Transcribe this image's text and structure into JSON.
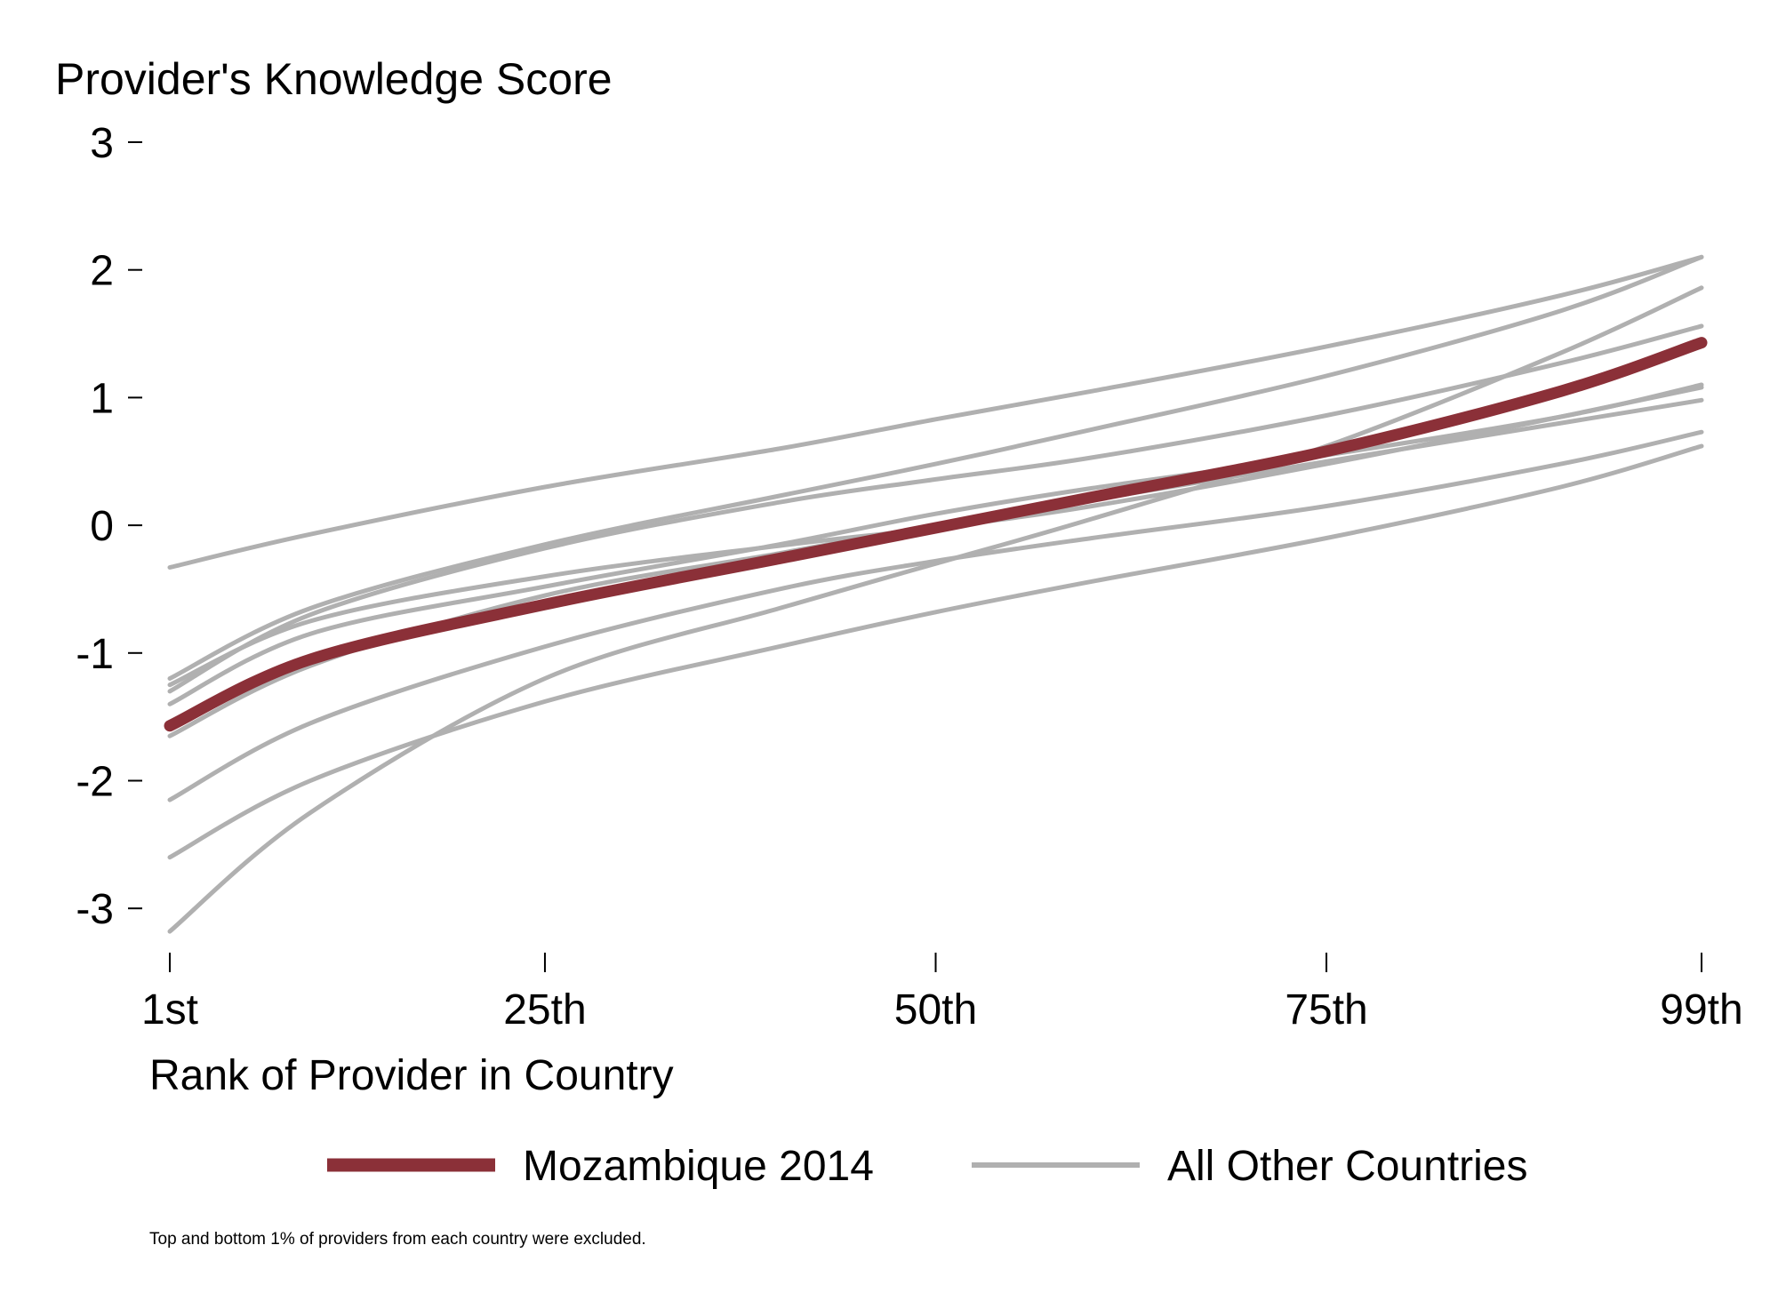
{
  "chart_data": {
    "type": "line",
    "ylabel": "Provider's Knowledge Score",
    "xlabel": "Rank of Provider in Country",
    "note": "Top and bottom 1% of providers from each country were excluded.",
    "xlim": [
      1,
      99
    ],
    "ylim": [
      -3.3,
      3.1
    ],
    "x_ticks": [
      {
        "value": 1,
        "label": "1st"
      },
      {
        "value": 25,
        "label": "25th"
      },
      {
        "value": 50,
        "label": "50th"
      },
      {
        "value": 75,
        "label": "75th"
      },
      {
        "value": 99,
        "label": "99th"
      }
    ],
    "y_ticks": [
      {
        "value": 3,
        "label": "3"
      },
      {
        "value": 2,
        "label": "2"
      },
      {
        "value": 1,
        "label": "1"
      },
      {
        "value": 0,
        "label": "0"
      },
      {
        "value": -1,
        "label": "-1"
      },
      {
        "value": -2,
        "label": "-2"
      },
      {
        "value": -3,
        "label": "-3"
      }
    ],
    "legend": {
      "placement": "bottom",
      "entries": [
        {
          "label": "Mozambique 2014",
          "color": "#8B3038"
        },
        {
          "label": "All Other Countries",
          "color": "#B0B0B0"
        }
      ]
    },
    "highlight_series": {
      "name": "Mozambique 2014",
      "color": "#8B3038",
      "x": [
        1,
        10,
        25,
        40,
        50,
        60,
        75,
        90,
        99
      ],
      "y": [
        -1.57,
        -1.05,
        -0.62,
        -0.26,
        -0.02,
        0.22,
        0.58,
        1.05,
        1.43
      ]
    },
    "other_series": {
      "color": "#B0B0B0",
      "lines": [
        {
          "x": [
            1,
            10,
            25,
            40,
            50,
            60,
            75,
            90,
            99
          ],
          "y": [
            -0.33,
            -0.07,
            0.3,
            0.6,
            0.83,
            1.05,
            1.4,
            1.8,
            2.1
          ]
        },
        {
          "x": [
            1,
            10,
            25,
            40,
            50,
            60,
            75,
            90,
            99
          ],
          "y": [
            -1.2,
            -0.65,
            -0.15,
            0.23,
            0.48,
            0.75,
            1.17,
            1.68,
            2.1
          ]
        },
        {
          "x": [
            1,
            10,
            25,
            40,
            50,
            60,
            75,
            90,
            99
          ],
          "y": [
            -1.3,
            -0.7,
            -0.18,
            0.18,
            0.36,
            0.53,
            0.86,
            1.27,
            1.56
          ]
        },
        {
          "x": [
            1,
            10,
            25,
            40,
            50,
            60,
            75,
            90,
            99
          ],
          "y": [
            -1.4,
            -0.85,
            -0.48,
            -0.15,
            0.09,
            0.29,
            0.55,
            0.85,
            1.1
          ]
        },
        {
          "x": [
            1,
            10,
            25,
            40,
            50,
            60,
            75,
            90,
            99
          ],
          "y": [
            -1.65,
            -1.1,
            -0.55,
            -0.22,
            0.0,
            0.2,
            0.5,
            0.8,
            0.98
          ]
        },
        {
          "x": [
            1,
            10,
            25,
            40,
            50,
            60,
            75,
            90,
            99
          ],
          "y": [
            -2.15,
            -1.55,
            -0.95,
            -0.5,
            -0.28,
            -0.1,
            0.15,
            0.48,
            0.73
          ]
        },
        {
          "x": [
            1,
            10,
            25,
            40,
            50,
            60,
            75,
            90,
            99
          ],
          "y": [
            -2.6,
            -2.0,
            -1.38,
            -0.95,
            -0.68,
            -0.44,
            -0.1,
            0.3,
            0.62
          ]
        },
        {
          "x": [
            1,
            10,
            25,
            40,
            50,
            60,
            75,
            90,
            99
          ],
          "y": [
            -3.18,
            -2.25,
            -1.2,
            -0.65,
            -0.3,
            0.05,
            0.62,
            1.35,
            1.86
          ]
        },
        {
          "x": [
            1,
            10,
            25,
            40,
            50,
            60,
            75,
            90,
            99
          ],
          "y": [
            -1.25,
            -0.75,
            -0.4,
            -0.16,
            -0.02,
            0.15,
            0.48,
            0.85,
            1.08
          ]
        }
      ]
    }
  }
}
